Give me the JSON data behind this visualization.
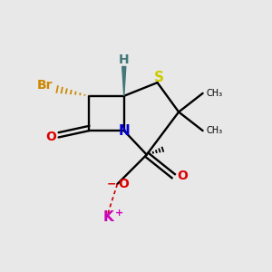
{
  "background_color": "#e8e8e8",
  "figsize": [
    3.0,
    3.0
  ],
  "dpi": 100,
  "colors": {
    "N": "#0000cc",
    "S": "#cccc00",
    "Br": "#cc8800",
    "O": "#dd0000",
    "K": "#cc00bb",
    "H": "#447777",
    "C": "#000000",
    "dashed_K": "#cc0000"
  }
}
